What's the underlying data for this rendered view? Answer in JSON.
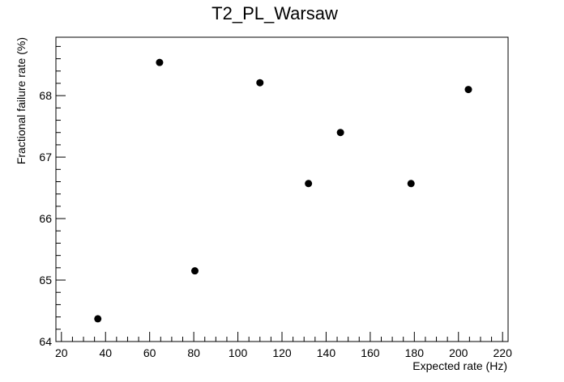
{
  "chart_data": {
    "type": "scatter",
    "title": "T2_PL_Warsaw",
    "xlabel": "Expected rate (Hz)",
    "ylabel": "Fractional failure rate (%)",
    "xlim": [
      17.5,
      222.5
    ],
    "ylim": [
      64.0,
      68.95
    ],
    "xticks": [
      20,
      40,
      60,
      80,
      100,
      120,
      140,
      160,
      180,
      200,
      220
    ],
    "yticks": [
      64,
      65,
      66,
      67,
      68
    ],
    "marker_color": "#000000",
    "grid": false,
    "legend": "none",
    "x": [
      36.5,
      64.5,
      80.5,
      110.0,
      132.0,
      146.5,
      178.5,
      204.5
    ],
    "y": [
      64.37,
      68.54,
      65.15,
      68.21,
      66.57,
      67.4,
      66.57,
      68.1
    ]
  }
}
